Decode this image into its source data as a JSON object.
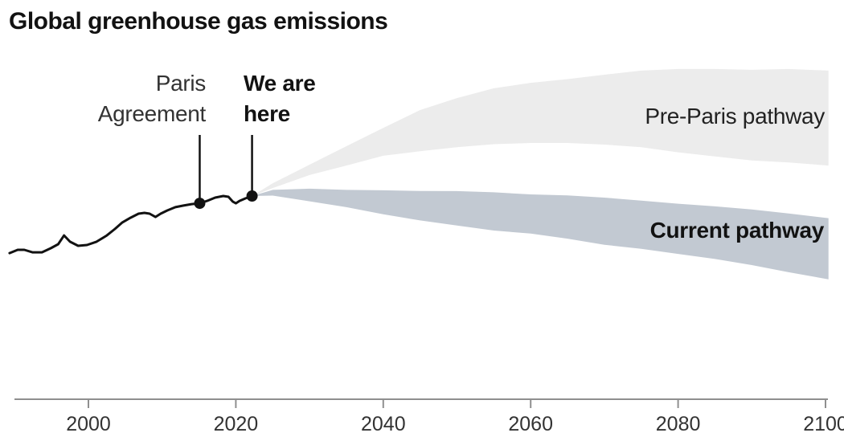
{
  "title": "Global greenhouse gas emissions",
  "annotations": {
    "paris_agreement": {
      "line1": "Paris",
      "line2": "Agreement"
    },
    "we_are_here": {
      "line1": "We are",
      "line2": "here"
    }
  },
  "pathway_labels": {
    "pre_paris": "Pre-Paris pathway",
    "current": "Current pathway"
  },
  "colors": {
    "pre_paris_band": "#ececec",
    "current_band": "#c2c9d2",
    "history_line": "#121212",
    "marker": "#121212",
    "axis": "#8f8f8f",
    "tick_label": "#333333"
  },
  "chart_data": {
    "type": "area",
    "title": "Global greenhouse gas emissions",
    "xlabel": "",
    "ylabel": "",
    "x_ticks": [
      2000,
      2020,
      2040,
      2060,
      2080,
      2100
    ],
    "x_range": [
      1989,
      2101
    ],
    "y_axis_note": "y-axis unlabeled in source; values are a relative emissions index with 2022 = 100",
    "grid": false,
    "history": {
      "name": "Historical emissions",
      "points": [
        [
          1989.3,
          71.9
        ],
        [
          1990.4,
          73.5
        ],
        [
          1991.3,
          73.5
        ],
        [
          1992.4,
          72.3
        ],
        [
          1993.7,
          72.3
        ],
        [
          1994.9,
          74.3
        ],
        [
          1995.9,
          76.3
        ],
        [
          1996.7,
          80.6
        ],
        [
          1997.5,
          77.5
        ],
        [
          1998.6,
          75.5
        ],
        [
          1999.8,
          75.9
        ],
        [
          2001.1,
          77.5
        ],
        [
          2002.5,
          80.6
        ],
        [
          2003.6,
          83.8
        ],
        [
          2004.6,
          87.0
        ],
        [
          2005.7,
          89.3
        ],
        [
          2006.8,
          91.3
        ],
        [
          2007.6,
          91.7
        ],
        [
          2008.3,
          91.3
        ],
        [
          2009.1,
          89.7
        ],
        [
          2009.8,
          91.3
        ],
        [
          2010.7,
          92.9
        ],
        [
          2011.8,
          94.5
        ],
        [
          2012.9,
          95.3
        ],
        [
          2014.0,
          96.0
        ],
        [
          2015.1,
          96.4
        ],
        [
          2016.1,
          97.6
        ],
        [
          2017.2,
          99.2
        ],
        [
          2018.3,
          100.0
        ],
        [
          2019.0,
          99.6
        ],
        [
          2019.6,
          97.2
        ],
        [
          2020.0,
          96.4
        ],
        [
          2020.5,
          97.6
        ],
        [
          2021.3,
          98.8
        ],
        [
          2022.2,
          100.0
        ]
      ]
    },
    "bands": [
      {
        "name": "Pre-Paris pathway",
        "color_key": "pre_paris_band",
        "points": [
          [
            2022.2,
            100.0,
            100.0
          ],
          [
            2025.0,
            103.9,
            106.3
          ],
          [
            2030.0,
            110.3,
            115.4
          ],
          [
            2035.0,
            115.0,
            124.5
          ],
          [
            2040.0,
            119.8,
            133.5
          ],
          [
            2045.0,
            122.0,
            142.3
          ],
          [
            2050.0,
            124.0,
            148.2
          ],
          [
            2055.0,
            125.5,
            153.0
          ],
          [
            2060.0,
            126.1,
            155.7
          ],
          [
            2065.0,
            126.1,
            157.5
          ],
          [
            2070.0,
            125.3,
            159.7
          ],
          [
            2075.0,
            124.0,
            161.7
          ],
          [
            2080.0,
            121.5,
            162.5
          ],
          [
            2085.0,
            119.5,
            162.5
          ],
          [
            2090.0,
            117.5,
            162.1
          ],
          [
            2095.0,
            116.5,
            162.5
          ],
          [
            2100.4,
            115.0,
            161.7
          ]
        ]
      },
      {
        "name": "Current pathway",
        "color_key": "current_band",
        "points": [
          [
            2022.2,
            100.0,
            100.0
          ],
          [
            2025.0,
            100.2,
            103.0
          ],
          [
            2030.0,
            97.4,
            103.6
          ],
          [
            2035.0,
            94.5,
            103.0
          ],
          [
            2040.0,
            91.0,
            102.8
          ],
          [
            2045.0,
            88.0,
            102.5
          ],
          [
            2050.0,
            85.5,
            102.4
          ],
          [
            2055.0,
            83.0,
            101.8
          ],
          [
            2060.0,
            81.5,
            100.8
          ],
          [
            2065.0,
            79.0,
            100.3
          ],
          [
            2070.0,
            76.0,
            99.2
          ],
          [
            2075.0,
            74.0,
            97.7
          ],
          [
            2080.0,
            71.5,
            96.2
          ],
          [
            2085.0,
            69.0,
            94.9
          ],
          [
            2090.0,
            66.0,
            93.4
          ],
          [
            2095.0,
            62.5,
            91.4
          ],
          [
            2100.4,
            59.0,
            89.1
          ]
        ]
      }
    ],
    "markers": [
      {
        "label": "Paris Agreement",
        "year": 2015.1,
        "value": 96.4
      },
      {
        "label": "We are here",
        "year": 2022.2,
        "value": 100.0
      }
    ]
  }
}
